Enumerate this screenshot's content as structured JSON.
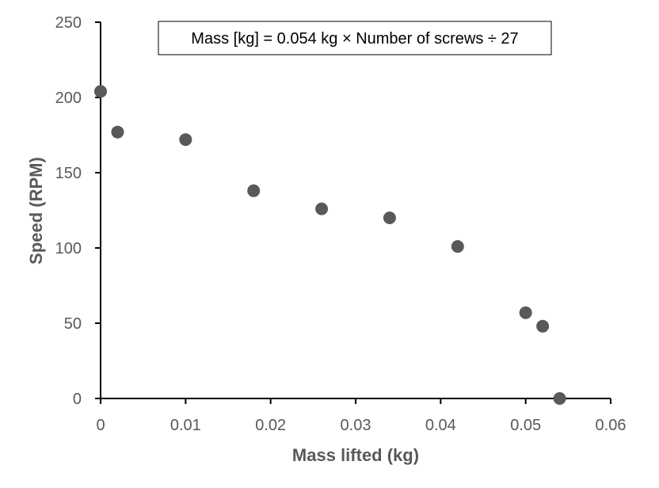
{
  "chart_data": {
    "type": "scatter",
    "title": "",
    "xlabel": "Mass lifted (kg)",
    "ylabel": "Speed (RPM)",
    "xlim": [
      0,
      0.06
    ],
    "ylim": [
      0,
      250
    ],
    "x_ticks": [
      "0",
      "0.01",
      "0.02",
      "0.03",
      "0.04",
      "0.05",
      "0.06"
    ],
    "y_ticks": [
      "0",
      "50",
      "100",
      "150",
      "200",
      "250"
    ],
    "grid": false,
    "legend": "none",
    "annotation": "Mass [kg] = 0.054 kg × Number of screws ÷ 27",
    "marker_color": "#595959",
    "axis_color": "#000000",
    "series": [
      {
        "x": [
          0,
          0.002,
          0.01,
          0.018,
          0.026,
          0.034,
          0.042,
          0.05,
          0.052,
          0.054
        ],
        "y": [
          204,
          177,
          172,
          138,
          126,
          120,
          101,
          57,
          48,
          0
        ]
      }
    ]
  }
}
